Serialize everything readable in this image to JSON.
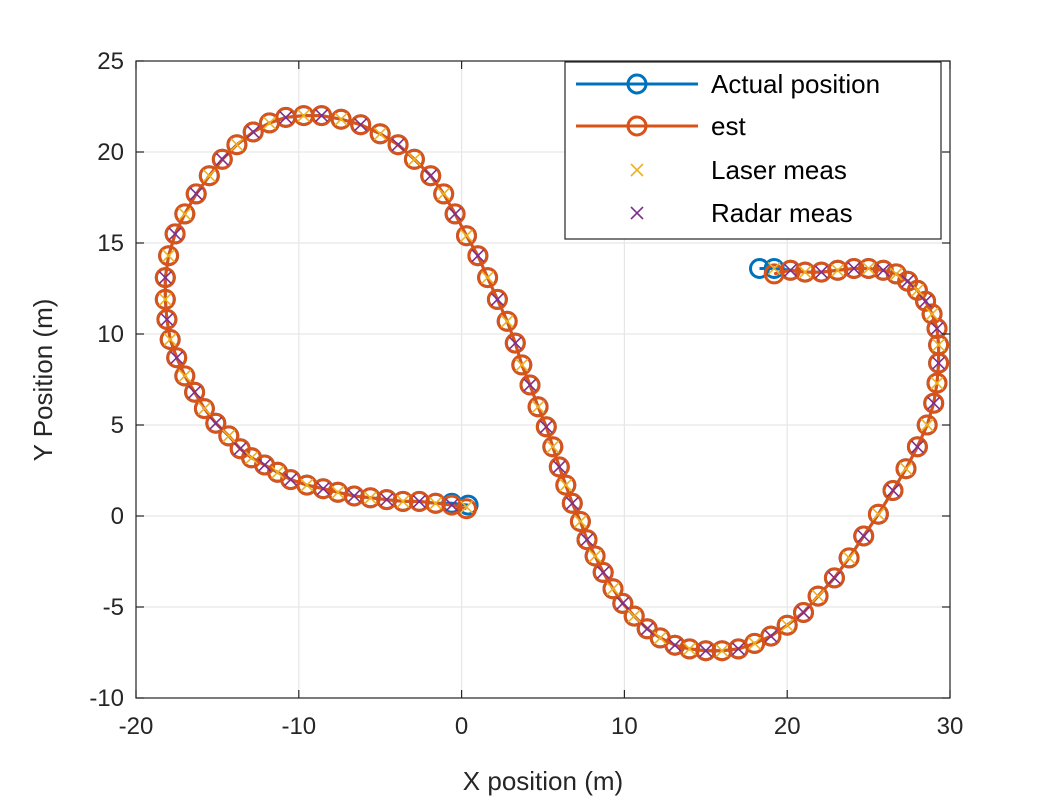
{
  "chart_data": {
    "type": "line",
    "xlabel": "X position (m)",
    "ylabel": "Y Position (m)",
    "xlim": [
      -20,
      30
    ],
    "ylim": [
      -10,
      25
    ],
    "xticks": [
      -20,
      -10,
      0,
      10,
      20,
      30
    ],
    "yticks": [
      -10,
      -5,
      0,
      5,
      10,
      15,
      20,
      25
    ],
    "xtick_labels": [
      "-20",
      "-10",
      "0",
      "10",
      "20",
      "30"
    ],
    "ytick_labels": [
      "-10",
      "-5",
      "0",
      "5",
      "10",
      "15",
      "20",
      "25"
    ],
    "grid": true,
    "legend_position": "top-right",
    "legend": [
      "Actual position",
      "est",
      "Laser meas",
      "Radar meas"
    ],
    "colors": {
      "actual": "#0072BD",
      "est": "#D95319",
      "laser": "#EDB120",
      "radar": "#7E2F8E",
      "grid": "#e6e6e6",
      "axis": "#262626"
    },
    "series": [
      {
        "name": "Actual position",
        "marker": "circle",
        "x": [
          0.4,
          -0.6,
          -1.6,
          -2.6,
          -3.6,
          -4.6,
          -5.6,
          -6.6,
          -7.6,
          -8.5,
          -9.5,
          -10.5,
          -11.3,
          -12.1,
          -12.9,
          -13.6,
          -14.3,
          -15.1,
          -15.8,
          -16.4,
          -17.0,
          -17.5,
          -17.9,
          -18.1,
          -18.2,
          -18.2,
          -18.0,
          -17.6,
          -17.0,
          -16.3,
          -15.5,
          -14.7,
          -13.8,
          -12.8,
          -11.8,
          -10.8,
          -9.7,
          -8.6,
          -7.4,
          -6.2,
          -5.0,
          -3.9,
          -2.9,
          -1.9,
          -1.1,
          -0.4,
          0.3,
          1.0,
          1.6,
          2.2,
          2.8,
          3.3,
          3.7,
          4.2,
          4.7,
          5.2,
          5.6,
          6.0,
          6.4,
          6.8,
          7.3,
          7.7,
          8.2,
          8.7,
          9.3,
          9.9,
          10.6,
          11.4,
          12.2,
          13.1,
          14.0,
          15.0,
          16.0,
          17.0,
          18.0,
          19.0,
          20.0,
          21.0,
          21.9,
          22.9,
          23.8,
          24.7,
          25.6,
          26.5,
          27.3,
          28.0,
          28.6,
          29.0,
          29.2,
          29.3,
          29.3,
          29.2,
          28.9,
          28.5,
          28.0,
          27.4,
          26.7,
          25.9,
          25.0,
          24.1,
          23.1,
          22.1,
          21.1,
          20.2,
          19.2,
          18.3
        ],
        "y": [
          0.6,
          0.7,
          0.7,
          0.8,
          0.8,
          0.9,
          1.0,
          1.1,
          1.3,
          1.5,
          1.7,
          2.0,
          2.4,
          2.8,
          3.2,
          3.7,
          4.4,
          5.1,
          5.9,
          6.8,
          7.7,
          8.7,
          9.7,
          10.8,
          11.9,
          13.1,
          14.3,
          15.5,
          16.6,
          17.7,
          18.7,
          19.6,
          20.4,
          21.1,
          21.6,
          21.9,
          22.0,
          22.0,
          21.8,
          21.5,
          21.0,
          20.4,
          19.6,
          18.7,
          17.7,
          16.6,
          15.4,
          14.3,
          13.1,
          11.9,
          10.7,
          9.5,
          8.3,
          7.2,
          6.0,
          4.9,
          3.8,
          2.7,
          1.7,
          0.7,
          -0.3,
          -1.3,
          -2.2,
          -3.1,
          -4.0,
          -4.8,
          -5.5,
          -6.2,
          -6.7,
          -7.1,
          -7.3,
          -7.4,
          -7.4,
          -7.3,
          -7.0,
          -6.6,
          -6.0,
          -5.3,
          -4.4,
          -3.4,
          -2.3,
          -1.1,
          0.1,
          1.4,
          2.6,
          3.8,
          5.0,
          6.2,
          7.3,
          8.4,
          9.4,
          10.3,
          11.1,
          11.8,
          12.4,
          12.9,
          13.3,
          13.5,
          13.6,
          13.6,
          13.5,
          13.4,
          13.4,
          13.5,
          13.6,
          13.6
        ]
      },
      {
        "name": "est",
        "marker": "circle",
        "x": [
          0.3,
          -0.6,
          -1.6,
          -2.6,
          -3.6,
          -4.6,
          -5.6,
          -6.6,
          -7.6,
          -8.5,
          -9.5,
          -10.5,
          -11.3,
          -12.1,
          -12.9,
          -13.6,
          -14.3,
          -15.1,
          -15.8,
          -16.4,
          -17.0,
          -17.5,
          -17.9,
          -18.1,
          -18.2,
          -18.2,
          -18.0,
          -17.6,
          -17.0,
          -16.3,
          -15.5,
          -14.7,
          -13.8,
          -12.8,
          -11.8,
          -10.8,
          -9.7,
          -8.6,
          -7.4,
          -6.2,
          -5.0,
          -3.9,
          -2.9,
          -1.9,
          -1.1,
          -0.4,
          0.3,
          1.0,
          1.6,
          2.2,
          2.8,
          3.3,
          3.7,
          4.2,
          4.7,
          5.2,
          5.6,
          6.0,
          6.4,
          6.8,
          7.3,
          7.7,
          8.2,
          8.7,
          9.3,
          9.9,
          10.6,
          11.4,
          12.2,
          13.1,
          14.0,
          15.0,
          16.0,
          17.0,
          18.0,
          19.0,
          20.0,
          21.0,
          21.9,
          22.9,
          23.8,
          24.7,
          25.6,
          26.5,
          27.3,
          28.0,
          28.6,
          29.0,
          29.2,
          29.3,
          29.3,
          29.2,
          28.9,
          28.5,
          28.0,
          27.4,
          26.7,
          25.9,
          25.0,
          24.1,
          23.1,
          22.1,
          21.1,
          20.2,
          19.2
        ],
        "y": [
          0.4,
          0.6,
          0.7,
          0.8,
          0.8,
          0.9,
          1.0,
          1.1,
          1.3,
          1.5,
          1.7,
          2.0,
          2.4,
          2.8,
          3.2,
          3.7,
          4.4,
          5.1,
          5.9,
          6.8,
          7.7,
          8.7,
          9.7,
          10.8,
          11.9,
          13.1,
          14.3,
          15.5,
          16.6,
          17.7,
          18.7,
          19.6,
          20.4,
          21.1,
          21.6,
          21.9,
          22.0,
          22.0,
          21.8,
          21.5,
          21.0,
          20.4,
          19.6,
          18.7,
          17.7,
          16.6,
          15.4,
          14.3,
          13.1,
          11.9,
          10.7,
          9.5,
          8.3,
          7.2,
          6.0,
          4.9,
          3.8,
          2.7,
          1.7,
          0.7,
          -0.3,
          -1.3,
          -2.2,
          -3.1,
          -4.0,
          -4.8,
          -5.5,
          -6.2,
          -6.7,
          -7.1,
          -7.3,
          -7.4,
          -7.4,
          -7.3,
          -7.0,
          -6.6,
          -6.0,
          -5.3,
          -4.4,
          -3.4,
          -2.3,
          -1.1,
          0.1,
          1.4,
          2.6,
          3.8,
          5.0,
          6.2,
          7.3,
          8.4,
          9.4,
          10.3,
          11.1,
          11.8,
          12.4,
          12.9,
          13.3,
          13.5,
          13.6,
          13.6,
          13.5,
          13.4,
          13.4,
          13.5,
          13.3
        ]
      },
      {
        "name": "Laser meas",
        "marker": "x",
        "x": [
          0.3,
          -1.6,
          -3.6,
          -5.6,
          -7.6,
          -9.5,
          -11.3,
          -12.9,
          -14.3,
          -15.8,
          -17.0,
          -17.9,
          -18.2,
          -18.0,
          -17.0,
          -15.5,
          -13.8,
          -11.8,
          -9.7,
          -7.4,
          -5.0,
          -2.9,
          -1.1,
          0.3,
          1.6,
          2.8,
          3.7,
          4.7,
          5.6,
          6.4,
          7.3,
          8.2,
          9.3,
          10.6,
          12.2,
          14.0,
          16.0,
          18.0,
          20.0,
          21.9,
          23.8,
          25.6,
          27.3,
          28.6,
          29.2,
          29.3,
          28.9,
          28.0,
          26.7,
          25.0,
          23.1,
          21.1,
          19.2
        ],
        "y": [
          0.5,
          0.7,
          0.8,
          1.0,
          1.3,
          1.7,
          2.4,
          3.2,
          4.4,
          5.9,
          7.7,
          9.7,
          11.9,
          14.3,
          16.6,
          18.7,
          20.4,
          21.6,
          22.0,
          21.8,
          21.0,
          19.6,
          17.7,
          15.4,
          13.1,
          10.7,
          8.3,
          6.0,
          3.8,
          1.7,
          -0.3,
          -2.2,
          -4.0,
          -5.5,
          -6.7,
          -7.3,
          -7.4,
          -7.0,
          -6.0,
          -4.4,
          -2.3,
          0.1,
          2.6,
          5.0,
          7.3,
          9.4,
          11.1,
          12.4,
          13.3,
          13.6,
          13.5,
          13.4,
          13.6
        ]
      },
      {
        "name": "Radar meas",
        "marker": "x",
        "x": [
          -0.6,
          -2.6,
          -4.6,
          -6.6,
          -8.5,
          -10.5,
          -12.1,
          -13.6,
          -15.1,
          -16.4,
          -17.5,
          -18.1,
          -18.2,
          -17.6,
          -16.3,
          -14.7,
          -12.8,
          -10.8,
          -8.6,
          -6.2,
          -3.9,
          -1.9,
          -0.4,
          1.0,
          2.2,
          3.3,
          4.2,
          5.2,
          6.0,
          6.8,
          7.7,
          8.7,
          9.9,
          11.4,
          13.1,
          15.0,
          17.0,
          19.0,
          21.0,
          22.9,
          24.7,
          26.5,
          28.0,
          29.0,
          29.3,
          29.2,
          28.5,
          27.4,
          25.9,
          24.1,
          22.1,
          20.2
        ],
        "y": [
          0.6,
          0.8,
          0.9,
          1.1,
          1.5,
          2.0,
          2.8,
          3.7,
          5.1,
          6.8,
          8.7,
          10.8,
          13.1,
          15.5,
          17.7,
          19.6,
          21.1,
          21.9,
          22.0,
          21.5,
          20.4,
          18.7,
          16.6,
          14.3,
          11.9,
          9.5,
          7.2,
          4.9,
          2.7,
          0.7,
          -1.3,
          -3.1,
          -4.8,
          -6.2,
          -7.1,
          -7.4,
          -7.3,
          -6.6,
          -5.3,
          -3.4,
          -1.1,
          1.4,
          3.8,
          6.2,
          8.4,
          10.3,
          11.8,
          12.9,
          13.5,
          13.6,
          13.4,
          13.5
        ]
      }
    ]
  }
}
